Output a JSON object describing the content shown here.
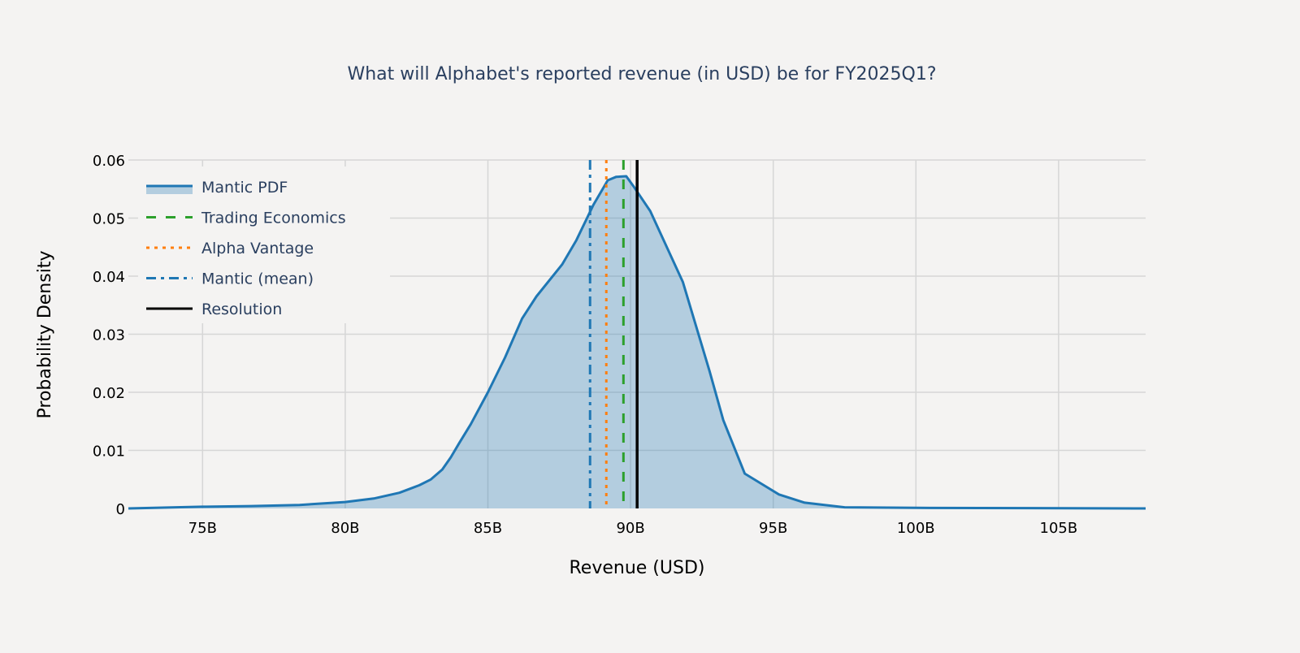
{
  "chart_data": {
    "type": "area",
    "title": "What will Alphabet's reported revenue (in USD) be for FY2025Q1?",
    "xlabel": "Revenue (USD)",
    "ylabel": "Probability Density",
    "xlim": [
      72.4,
      108.05
    ],
    "ylim": [
      0,
      0.06
    ],
    "x_unit_suffix": "B",
    "x_ticks": [
      75,
      80,
      85,
      90,
      95,
      100,
      105
    ],
    "x_tick_labels": [
      "75B",
      "80B",
      "85B",
      "90B",
      "95B",
      "100B",
      "105B"
    ],
    "y_ticks": [
      0,
      0.01,
      0.02,
      0.03,
      0.04,
      0.05,
      0.06
    ],
    "y_tick_labels": [
      "0",
      "0.01",
      "0.02",
      "0.03",
      "0.04",
      "0.05",
      "0.06"
    ],
    "grid": true,
    "legend_placement": "top-left",
    "series": [
      {
        "name": "Mantic PDF",
        "color": "#1f77b4",
        "fill": "rgba(31,119,180,0.3)",
        "x": [
          72.4,
          75,
          76.7,
          78.4,
          80,
          81,
          81.9,
          82.6,
          83.0,
          83.4,
          83.7,
          84.0,
          84.4,
          85.0,
          85.6,
          86.2,
          86.7,
          87.6,
          88.1,
          88.7,
          89.2,
          89.5,
          89.85,
          90.1,
          90.69,
          91.83,
          92.77,
          93.25,
          94.0,
          94.7,
          95.2,
          96.1,
          97.5,
          100,
          108.05
        ],
        "y": [
          0,
          0.0003,
          0.0004,
          0.0006,
          0.0011,
          0.0017,
          0.0027,
          0.004,
          0.005,
          0.0067,
          0.0088,
          0.0113,
          0.0145,
          0.02,
          0.026,
          0.0327,
          0.0365,
          0.042,
          0.0462,
          0.0523,
          0.0565,
          0.0571,
          0.0572,
          0.0555,
          0.0512,
          0.039,
          0.0236,
          0.0152,
          0.006,
          0.0039,
          0.0024,
          0.001,
          0.0002,
          0.0001,
          0
        ]
      }
    ],
    "vlines": [
      {
        "name": "Trading Economics",
        "x": 89.75,
        "color": "#2ca02c",
        "dash": "dash"
      },
      {
        "name": "Alpha Vantage",
        "x": 89.15,
        "color": "#ff7f0e",
        "dash": "dot"
      },
      {
        "name": "Mantic (mean)",
        "x": 88.58,
        "color": "#1f77b4",
        "dash": "dashdot"
      },
      {
        "name": "Resolution",
        "x": 90.23,
        "color": "#000000",
        "dash": "solid"
      }
    ]
  }
}
